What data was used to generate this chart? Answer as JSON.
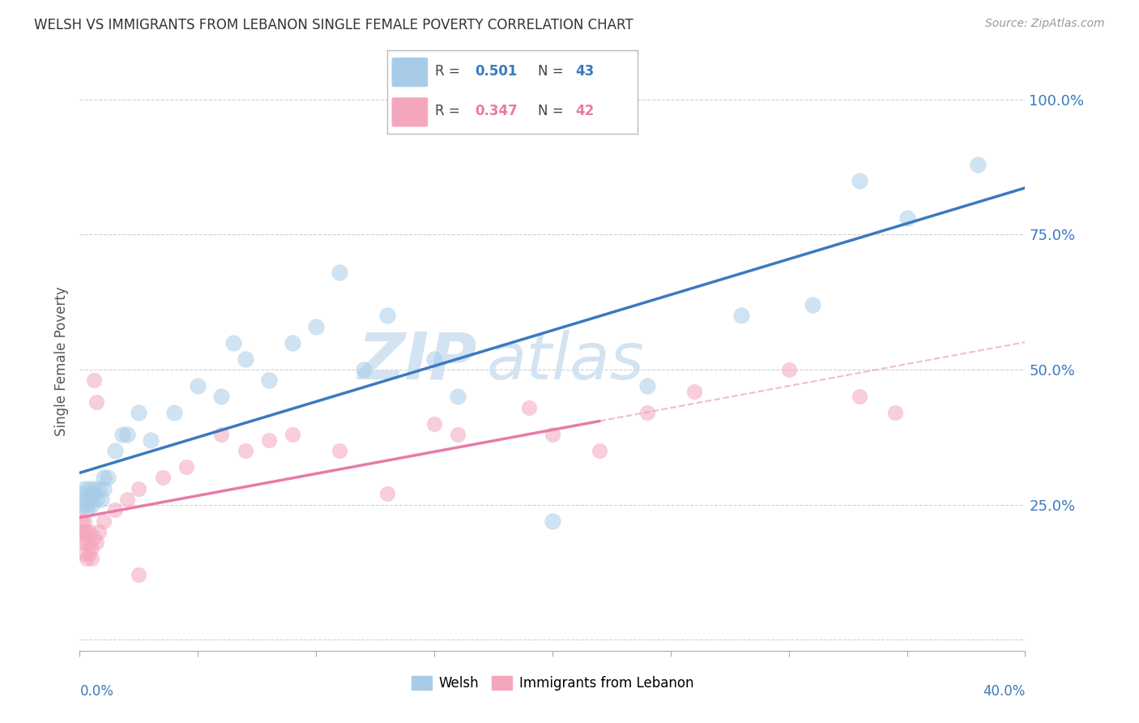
{
  "title": "WELSH VS IMMIGRANTS FROM LEBANON SINGLE FEMALE POVERTY CORRELATION CHART",
  "source": "Source: ZipAtlas.com",
  "ylabel": "Single Female Poverty",
  "xlim": [
    0.0,
    0.4
  ],
  "ylim": [
    -0.02,
    1.05
  ],
  "legend_welsh_R": "0.501",
  "legend_welsh_N": "43",
  "legend_leb_R": "0.347",
  "legend_leb_N": "42",
  "welsh_color": "#a8cce8",
  "leb_color": "#f4a7bc",
  "welsh_line_color": "#3a7abf",
  "leb_line_color": "#e87aaa",
  "leb_dash_color": "#e8a0be",
  "watermark_color": "#cddff0",
  "background_color": "#ffffff",
  "grid_color": "#cccccc",
  "welsh_x": [
    0.001,
    0.001,
    0.002,
    0.002,
    0.003,
    0.003,
    0.004,
    0.004,
    0.005,
    0.005,
    0.006,
    0.006,
    0.007,
    0.008,
    0.009,
    0.01,
    0.01,
    0.012,
    0.015,
    0.018,
    0.02,
    0.025,
    0.03,
    0.04,
    0.05,
    0.06,
    0.065,
    0.07,
    0.08,
    0.09,
    0.1,
    0.12,
    0.15,
    0.16,
    0.2,
    0.24,
    0.28,
    0.31,
    0.33,
    0.35,
    0.11,
    0.13,
    0.38
  ],
  "welsh_y": [
    0.25,
    0.27,
    0.26,
    0.28,
    0.24,
    0.25,
    0.26,
    0.28,
    0.25,
    0.27,
    0.27,
    0.28,
    0.26,
    0.28,
    0.26,
    0.28,
    0.3,
    0.3,
    0.35,
    0.38,
    0.38,
    0.42,
    0.37,
    0.42,
    0.47,
    0.45,
    0.55,
    0.52,
    0.48,
    0.55,
    0.58,
    0.5,
    0.52,
    0.45,
    0.22,
    0.47,
    0.6,
    0.62,
    0.85,
    0.78,
    0.68,
    0.6,
    0.88
  ],
  "leb_x": [
    0.001,
    0.001,
    0.001,
    0.002,
    0.002,
    0.002,
    0.003,
    0.003,
    0.003,
    0.004,
    0.004,
    0.004,
    0.005,
    0.005,
    0.006,
    0.006,
    0.007,
    0.007,
    0.008,
    0.01,
    0.015,
    0.02,
    0.025,
    0.035,
    0.045,
    0.06,
    0.07,
    0.08,
    0.09,
    0.11,
    0.13,
    0.15,
    0.16,
    0.19,
    0.2,
    0.22,
    0.24,
    0.26,
    0.3,
    0.33,
    0.345,
    0.025
  ],
  "leb_y": [
    0.2,
    0.22,
    0.18,
    0.2,
    0.22,
    0.16,
    0.18,
    0.2,
    0.15,
    0.16,
    0.18,
    0.2,
    0.17,
    0.15,
    0.19,
    0.48,
    0.44,
    0.18,
    0.2,
    0.22,
    0.24,
    0.26,
    0.28,
    0.3,
    0.32,
    0.38,
    0.35,
    0.37,
    0.38,
    0.35,
    0.27,
    0.4,
    0.38,
    0.43,
    0.38,
    0.35,
    0.42,
    0.46,
    0.5,
    0.45,
    0.42,
    0.12
  ],
  "yticks": [
    0.0,
    0.25,
    0.5,
    0.75,
    1.0
  ],
  "ytick_labels": [
    "",
    "25.0%",
    "50.0%",
    "75.0%",
    "100.0%"
  ]
}
